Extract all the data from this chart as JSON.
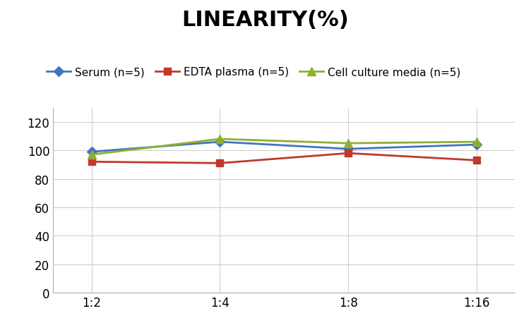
{
  "title": "LINEARITY(%)",
  "x_labels": [
    "1:2",
    "1:4",
    "1:8",
    "1:16"
  ],
  "series": [
    {
      "name": "Serum (n=5)",
      "values": [
        99,
        106,
        101,
        104
      ],
      "color": "#4472C4",
      "marker": "D",
      "markersize": 7
    },
    {
      "name": "EDTA plasma (n=5)",
      "values": [
        92,
        91,
        98,
        93
      ],
      "color": "#C0392B",
      "marker": "s",
      "markersize": 7
    },
    {
      "name": "Cell culture media (n=5)",
      "values": [
        97,
        108,
        105,
        106
      ],
      "color": "#8DB030",
      "marker": "^",
      "markersize": 8
    }
  ],
  "ylim": [
    0,
    130
  ],
  "yticks": [
    0,
    20,
    40,
    60,
    80,
    100,
    120
  ],
  "title_fontsize": 22,
  "legend_fontsize": 11,
  "tick_fontsize": 12,
  "background_color": "#ffffff",
  "grid_color": "#d0d0d0",
  "linewidth": 2.0
}
